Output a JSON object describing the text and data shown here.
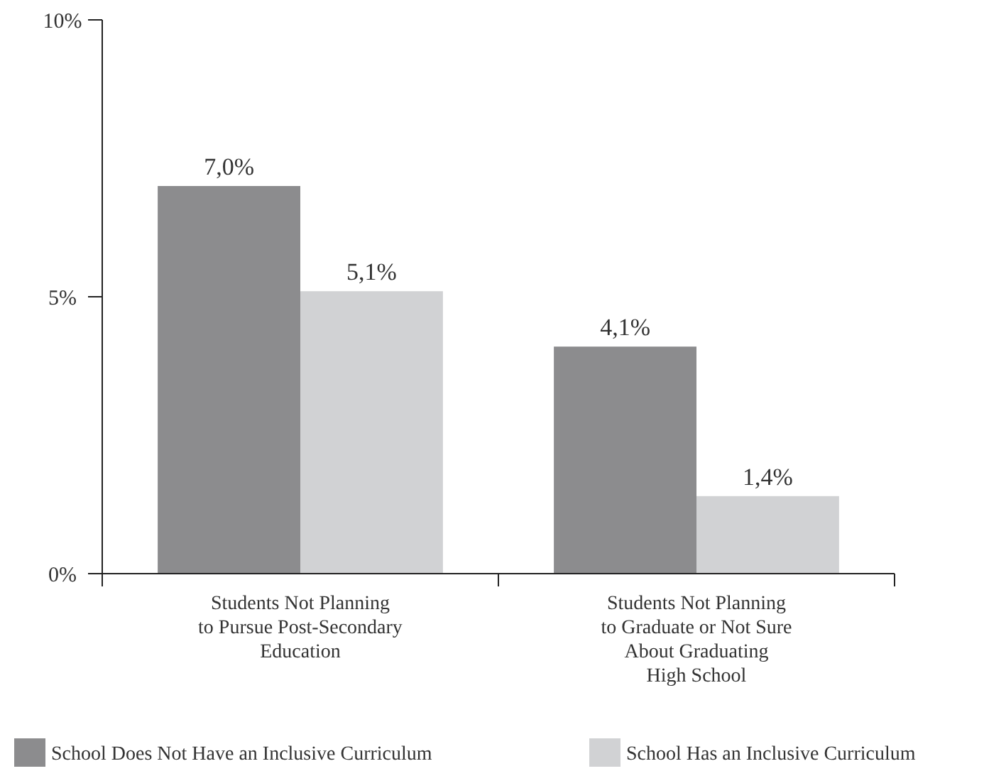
{
  "chart_data": {
    "type": "bar",
    "categories": [
      "Students Not Planning\nto Pursue Post-Secondary\nEducation",
      "Students Not Planning\nto Graduate or Not Sure\nAbout Graduating\nHigh School"
    ],
    "series": [
      {
        "name": "School Does Not Have an Inclusive Curriculum",
        "color": "#8c8c8e",
        "values": [
          7.0,
          4.1
        ],
        "value_labels": [
          "7,0%",
          "4,1%"
        ]
      },
      {
        "name": "School Has an Inclusive Curriculum",
        "color": "#d1d2d4",
        "values": [
          5.1,
          1.4
        ],
        "value_labels": [
          "5,1%",
          "1,4%"
        ]
      }
    ],
    "ylim": [
      0,
      10
    ],
    "yticks": [
      {
        "value": 0,
        "label": "0%"
      },
      {
        "value": 5,
        "label": "5%"
      },
      {
        "value": 10,
        "label": "10%"
      }
    ],
    "grid": false,
    "legend": "bottom"
  }
}
